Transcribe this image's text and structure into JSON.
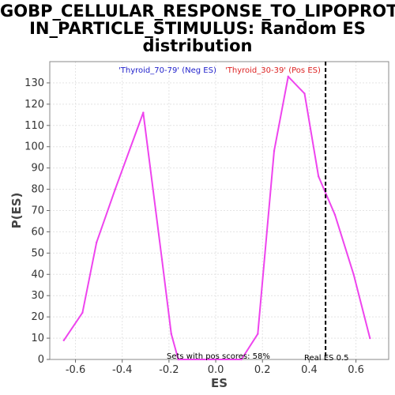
{
  "chart_data": {
    "type": "line",
    "title_lines": [
      "GOBP_CELLULAR_RESPONSE_TO_LIPOPROTE",
      "IN_PARTICLE_STIMULUS: Random ES",
      "distribution"
    ],
    "xlabel": "ES",
    "ylabel": "P(ES)",
    "xlim": [
      -0.71,
      0.74
    ],
    "ylim": [
      0,
      140
    ],
    "xticks": [
      -0.6,
      -0.4,
      -0.2,
      0.0,
      0.2,
      0.4,
      0.6
    ],
    "xtick_labels": [
      "-0.6",
      "-0.4",
      "-0.2",
      "0.0",
      "0.2",
      "0.4",
      "0.6"
    ],
    "yticks": [
      0,
      10,
      20,
      30,
      40,
      50,
      60,
      70,
      80,
      90,
      100,
      110,
      120,
      130
    ],
    "ytick_labels": [
      "0",
      "10",
      "20",
      "30",
      "40",
      "50",
      "60",
      "70",
      "80",
      "90",
      "100",
      "110",
      "120",
      "130"
    ],
    "grid": true,
    "series": [
      {
        "color": "#ee44ee",
        "x": [
          -0.65,
          -0.57,
          -0.51,
          -0.43,
          -0.31,
          -0.23,
          -0.19,
          -0.16,
          0.11,
          0.18,
          0.25,
          0.31,
          0.38,
          0.44,
          0.51,
          0.59,
          0.66
        ],
        "y": [
          9,
          22,
          55,
          80,
          116,
          47,
          12,
          0,
          0,
          12,
          98,
          133,
          125,
          86,
          68,
          40,
          10
        ]
      }
    ],
    "reference_line": {
      "x": 0.47,
      "label": "Real ES 0.5",
      "color": "#000000",
      "style": "dashed"
    },
    "legend": [
      {
        "text": "'Thyroid_70-79' (Neg ES)",
        "color": "#2222cc"
      },
      {
        "text": "'Thyroid_30-39' (Pos ES)",
        "color": "#dd2222"
      }
    ],
    "annotation": "Sets with pos scores: 58%"
  }
}
